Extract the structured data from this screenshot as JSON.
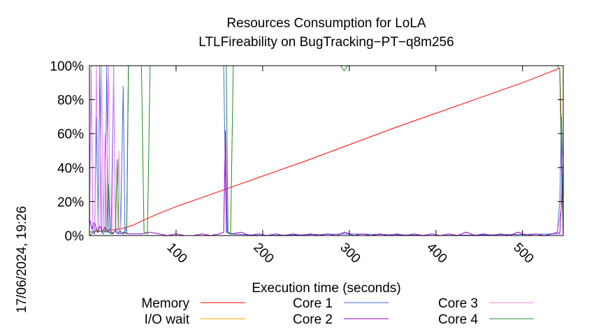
{
  "chart_data": {
    "type": "line",
    "title": "Resources Consumption for LoLA",
    "subtitle": "LTLFireability on BugTracking−PT−q8m256",
    "xlabel": "Execution time (seconds)",
    "ylabel": "",
    "timestamp": "17/06/2024, 19:26",
    "xlim": [
      0,
      547
    ],
    "ylim": [
      0,
      100
    ],
    "x_ticks": [
      100,
      200,
      300,
      400,
      500
    ],
    "y_ticks": [
      {
        "value": 0,
        "label": "0%"
      },
      {
        "value": 20,
        "label": "20%"
      },
      {
        "value": 40,
        "label": "40%"
      },
      {
        "value": 60,
        "label": "60%"
      },
      {
        "value": 80,
        "label": "80%"
      },
      {
        "value": 100,
        "label": "100%"
      }
    ],
    "grid": false,
    "legend_position": "bottom",
    "series": [
      {
        "name": "Memory",
        "color": "#ff0000",
        "points": [
          [
            0,
            2
          ],
          [
            10,
            2.5
          ],
          [
            20,
            3
          ],
          [
            30,
            3.5
          ],
          [
            40,
            4.5
          ],
          [
            50,
            6
          ],
          [
            60,
            8.5
          ],
          [
            80,
            13
          ],
          [
            100,
            17
          ],
          [
            150,
            26
          ],
          [
            200,
            35
          ],
          [
            250,
            44
          ],
          [
            300,
            53.5
          ],
          [
            350,
            63
          ],
          [
            400,
            72
          ],
          [
            450,
            81
          ],
          [
            500,
            90
          ],
          [
            543,
            98.5
          ],
          [
            546,
            40
          ],
          [
            547,
            0
          ]
        ]
      },
      {
        "name": "I/O wait",
        "color": "#ffa500",
        "points": [
          [
            0,
            0
          ],
          [
            200,
            0
          ],
          [
            400,
            0
          ],
          [
            547,
            0
          ]
        ]
      },
      {
        "name": "Core 1",
        "color": "#4169e1",
        "points": [
          [
            0,
            0
          ],
          [
            2,
            100
          ],
          [
            4,
            2
          ],
          [
            6,
            1
          ],
          [
            8,
            70
          ],
          [
            10,
            3
          ],
          [
            12,
            100
          ],
          [
            14,
            2
          ],
          [
            16,
            1
          ],
          [
            18,
            3
          ],
          [
            20,
            100
          ],
          [
            22,
            2
          ],
          [
            25,
            1
          ],
          [
            28,
            100
          ],
          [
            30,
            2
          ],
          [
            33,
            1
          ],
          [
            36,
            3
          ],
          [
            39,
            88
          ],
          [
            41,
            2
          ],
          [
            43,
            1
          ],
          [
            45,
            100
          ],
          [
            60,
            100
          ],
          [
            100,
            100
          ],
          [
            155,
            100
          ],
          [
            158,
            2
          ],
          [
            162,
            1
          ],
          [
            200,
            0
          ],
          [
            300,
            1
          ],
          [
            400,
            0
          ],
          [
            540,
            1
          ],
          [
            543,
            20
          ],
          [
            545,
            70
          ],
          [
            547,
            2
          ]
        ]
      },
      {
        "name": "Core 2",
        "color": "#9400d3",
        "points": [
          [
            0,
            10
          ],
          [
            3,
            4
          ],
          [
            6,
            8
          ],
          [
            9,
            2
          ],
          [
            12,
            6
          ],
          [
            15,
            2
          ],
          [
            18,
            5
          ],
          [
            21,
            2
          ],
          [
            24,
            4
          ],
          [
            27,
            1
          ],
          [
            30,
            3
          ],
          [
            35,
            1
          ],
          [
            40,
            2
          ],
          [
            45,
            1
          ],
          [
            50,
            1
          ],
          [
            60,
            1
          ],
          [
            70,
            2
          ],
          [
            80,
            1
          ],
          [
            90,
            0
          ],
          [
            100,
            1
          ],
          [
            110,
            0
          ],
          [
            120,
            0
          ],
          [
            130,
            1
          ],
          [
            140,
            0
          ],
          [
            150,
            1
          ],
          [
            155,
            2
          ],
          [
            157,
            62
          ],
          [
            159,
            2
          ],
          [
            165,
            1
          ],
          [
            175,
            2
          ],
          [
            185,
            0
          ],
          [
            195,
            1
          ],
          [
            205,
            0
          ],
          [
            215,
            1
          ],
          [
            225,
            0
          ],
          [
            235,
            1
          ],
          [
            245,
            0
          ],
          [
            255,
            1
          ],
          [
            265,
            0
          ],
          [
            275,
            1
          ],
          [
            285,
            0
          ],
          [
            295,
            2
          ],
          [
            305,
            0
          ],
          [
            315,
            1
          ],
          [
            325,
            0
          ],
          [
            335,
            1
          ],
          [
            345,
            0
          ],
          [
            355,
            1
          ],
          [
            365,
            0
          ],
          [
            375,
            1
          ],
          [
            385,
            0
          ],
          [
            395,
            1
          ],
          [
            405,
            0
          ],
          [
            415,
            1
          ],
          [
            425,
            0
          ],
          [
            435,
            2
          ],
          [
            445,
            0
          ],
          [
            455,
            1
          ],
          [
            465,
            0
          ],
          [
            475,
            1
          ],
          [
            485,
            0
          ],
          [
            495,
            2
          ],
          [
            505,
            0
          ],
          [
            515,
            1
          ],
          [
            525,
            0
          ],
          [
            535,
            1
          ],
          [
            540,
            2
          ],
          [
            543,
            1
          ],
          [
            546,
            30
          ],
          [
            547,
            10
          ]
        ]
      },
      {
        "name": "Core 3",
        "color": "#ee82ee",
        "points": [
          [
            0,
            5
          ],
          [
            2,
            100
          ],
          [
            4,
            8
          ],
          [
            6,
            3
          ],
          [
            8,
            100
          ],
          [
            10,
            5
          ],
          [
            12,
            2
          ],
          [
            14,
            100
          ],
          [
            16,
            3
          ],
          [
            18,
            60
          ],
          [
            20,
            2
          ],
          [
            22,
            100
          ],
          [
            24,
            4
          ],
          [
            26,
            2
          ],
          [
            28,
            100
          ],
          [
            30,
            5
          ],
          [
            32,
            2
          ],
          [
            34,
            50
          ],
          [
            36,
            3
          ],
          [
            38,
            1
          ],
          [
            40,
            0
          ],
          [
            60,
            0
          ],
          [
            100,
            0
          ],
          [
            200,
            0
          ],
          [
            300,
            0
          ],
          [
            400,
            0
          ],
          [
            540,
            0
          ],
          [
            544,
            15
          ],
          [
            547,
            60
          ]
        ]
      },
      {
        "name": "Core 4",
        "color": "#228b22",
        "points": [
          [
            0,
            0
          ],
          [
            5,
            2
          ],
          [
            8,
            4
          ],
          [
            10,
            2
          ],
          [
            15,
            3
          ],
          [
            20,
            2
          ],
          [
            22,
            30
          ],
          [
            24,
            2
          ],
          [
            26,
            1
          ],
          [
            30,
            3
          ],
          [
            32,
            45
          ],
          [
            34,
            3
          ],
          [
            36,
            2
          ],
          [
            40,
            1
          ],
          [
            43,
            5
          ],
          [
            45,
            100
          ],
          [
            60,
            100
          ],
          [
            63,
            2
          ],
          [
            67,
            1
          ],
          [
            70,
            100
          ],
          [
            150,
            100
          ],
          [
            158,
            100
          ],
          [
            160,
            2
          ],
          [
            163,
            1
          ],
          [
            166,
            100
          ],
          [
            290,
            100
          ],
          [
            294,
            97
          ],
          [
            298,
            100
          ],
          [
            400,
            100
          ],
          [
            540,
            100
          ],
          [
            543,
            98
          ],
          [
            545,
            40
          ],
          [
            547,
            0
          ]
        ]
      }
    ]
  }
}
